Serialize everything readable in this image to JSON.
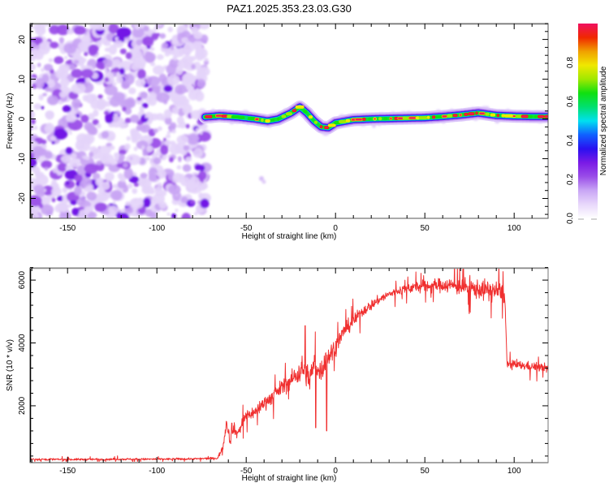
{
  "title": "PAZ1.2025.353.23.03.G30",
  "chart_data": [
    {
      "type": "heatmap",
      "name": "spectrogram",
      "title": "PAZ1.2025.353.23.03.G30",
      "xlabel": "Height of straight line (km)",
      "ylabel": "Frequency (Hz)",
      "xlim": [
        -171,
        119
      ],
      "ylim": [
        -25,
        24
      ],
      "xticks": [
        -150,
        -100,
        -50,
        0,
        50,
        100
      ],
      "xtick_labels": [
        "-150",
        "-100",
        "-50",
        "0",
        "50",
        "100"
      ],
      "yticks": [
        -20,
        -10,
        0,
        10,
        20
      ],
      "ytick_labels": [
        "-20",
        "-10",
        "0",
        "10",
        "20"
      ],
      "grid": false,
      "noise_region": {
        "x_range": [
          -171,
          -72
        ],
        "y_range": [
          -25,
          24
        ],
        "amplitude_range": [
          0.0,
          0.12
        ]
      },
      "signal_track": {
        "description": "Narrow high-amplitude line near 0 Hz from about -73 km to the right edge",
        "x": [
          -73,
          -65,
          -55,
          -45,
          -38,
          -32,
          -25,
          -20,
          -16,
          -12,
          -8,
          -4,
          0,
          10,
          20,
          30,
          40,
          50,
          60,
          70,
          80,
          90,
          100,
          110,
          119
        ],
        "freq_hz": [
          0.5,
          0.8,
          0.5,
          0.0,
          -0.5,
          0.0,
          1.5,
          3.0,
          1.5,
          -0.5,
          -2.0,
          -2.2,
          -1.0,
          -0.2,
          0.0,
          0.1,
          0.2,
          0.3,
          0.6,
          1.0,
          1.5,
          0.9,
          0.7,
          0.6,
          0.6
        ],
        "peak_amplitude": 0.95
      },
      "colorbar": {
        "label": "Normalized spectral amplitude",
        "range": [
          0.0,
          1.0
        ],
        "ticks": [
          0.0,
          0.2,
          0.4,
          0.6,
          0.8
        ],
        "tick_labels": [
          "0.0",
          "0.2",
          "0.4",
          "0.6",
          "0.8"
        ],
        "colormap": [
          "#ffffff",
          "#e8d8fb",
          "#c9a6f5",
          "#9a4de8",
          "#7a1ae6",
          "#2a10f0",
          "#1060ff",
          "#00e0f0",
          "#00e070",
          "#10e010",
          "#a0e800",
          "#f0e800",
          "#f0a000",
          "#f02800",
          "#f01060"
        ]
      }
    },
    {
      "type": "line",
      "name": "snr",
      "xlabel": "Height of straight line (km)",
      "ylabel": "SNR (10 * v/v)",
      "xlim": [
        -171,
        119
      ],
      "ylim": [
        190,
        6390
      ],
      "xticks": [
        -150,
        -100,
        -50,
        0,
        50,
        100
      ],
      "xtick_labels": [
        "-150",
        "-100",
        "-50",
        "0",
        "50",
        "100"
      ],
      "yticks": [
        2000,
        4000,
        6000
      ],
      "ytick_labels": [
        "2000",
        "4000",
        "6000"
      ],
      "grid": false,
      "line_color": "#f03030",
      "series": [
        {
          "name": "SNR",
          "x": [
            -171,
            -150,
            -120,
            -100,
            -80,
            -66,
            -63,
            -61,
            -59,
            -57,
            -55,
            -50,
            -45,
            -40,
            -35,
            -30,
            -25,
            -20,
            -17,
            -15,
            -12,
            -8,
            -5,
            -2,
            0,
            5,
            10,
            15,
            20,
            25,
            30,
            35,
            40,
            50,
            60,
            70,
            80,
            90,
            94,
            95,
            96,
            100,
            110,
            119
          ],
          "y": [
            300,
            290,
            300,
            300,
            310,
            330,
            700,
            1500,
            900,
            1300,
            1100,
            1700,
            1800,
            2100,
            2300,
            2600,
            2800,
            3100,
            3200,
            2800,
            3300,
            3100,
            3500,
            3700,
            3900,
            4400,
            4700,
            5000,
            5200,
            5400,
            5550,
            5650,
            5750,
            5800,
            5850,
            5800,
            5700,
            5650,
            5600,
            5200,
            3300,
            3300,
            3250,
            3200
          ],
          "noise_amplitude": [
            60,
            60,
            60,
            60,
            60,
            60,
            200,
            300,
            300,
            300,
            300,
            350,
            350,
            400,
            400,
            450,
            500,
            700,
            900,
            700,
            700,
            600,
            700,
            600,
            500,
            400,
            400,
            300,
            300,
            250,
            250,
            250,
            300,
            350,
            400,
            500,
            550,
            600,
            500,
            300,
            250,
            250,
            250,
            250
          ],
          "notable_spikes": [
            {
              "x": -17,
              "y": 4550
            },
            {
              "x": -11,
              "y": 1300
            },
            {
              "x": -5,
              "y": 1200
            },
            {
              "x": -58,
              "y": 1450
            }
          ]
        }
      ]
    }
  ]
}
